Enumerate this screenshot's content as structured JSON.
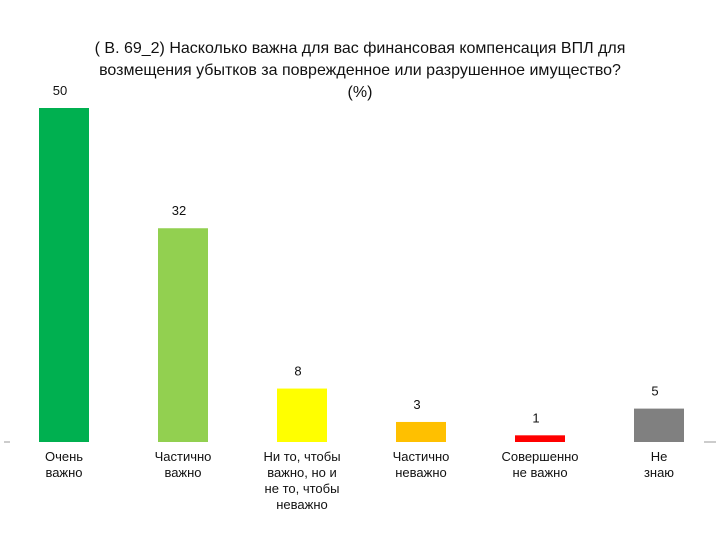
{
  "chart_data": {
    "type": "bar",
    "title": "( В. 69_2) Насколько важна для вас финансовая компенсация ВПЛ для возмещения убытков за поврежденное или разрушенное имущество? (%)",
    "categories": [
      "Очень важно",
      "Частично важно",
      "Ни то, чтобы важно, но и не то, чтобы неважно",
      "Частично неважно",
      "Совершенно не важно",
      "Не знаю"
    ],
    "category_lines": [
      [
        "Очень",
        "важно"
      ],
      [
        "Частично",
        "важно"
      ],
      [
        "Ни то, чтобы",
        "важно, но и",
        "не то, чтобы",
        "неважно"
      ],
      [
        "Частично",
        "неважно"
      ],
      [
        "Совершенно",
        "не важно"
      ],
      [
        "Не",
        "знаю"
      ]
    ],
    "values": [
      50,
      32,
      8,
      3,
      1,
      5
    ],
    "value_labels": [
      "50",
      "32",
      "8",
      "3",
      "1",
      "5"
    ],
    "colors": [
      "#00b050",
      "#92d050",
      "#ffff00",
      "#ffc000",
      "#ff0000",
      "#808080"
    ],
    "ylim": [
      0,
      50
    ],
    "xlabel": "",
    "ylabel": "",
    "grid": false,
    "legend": "none"
  }
}
